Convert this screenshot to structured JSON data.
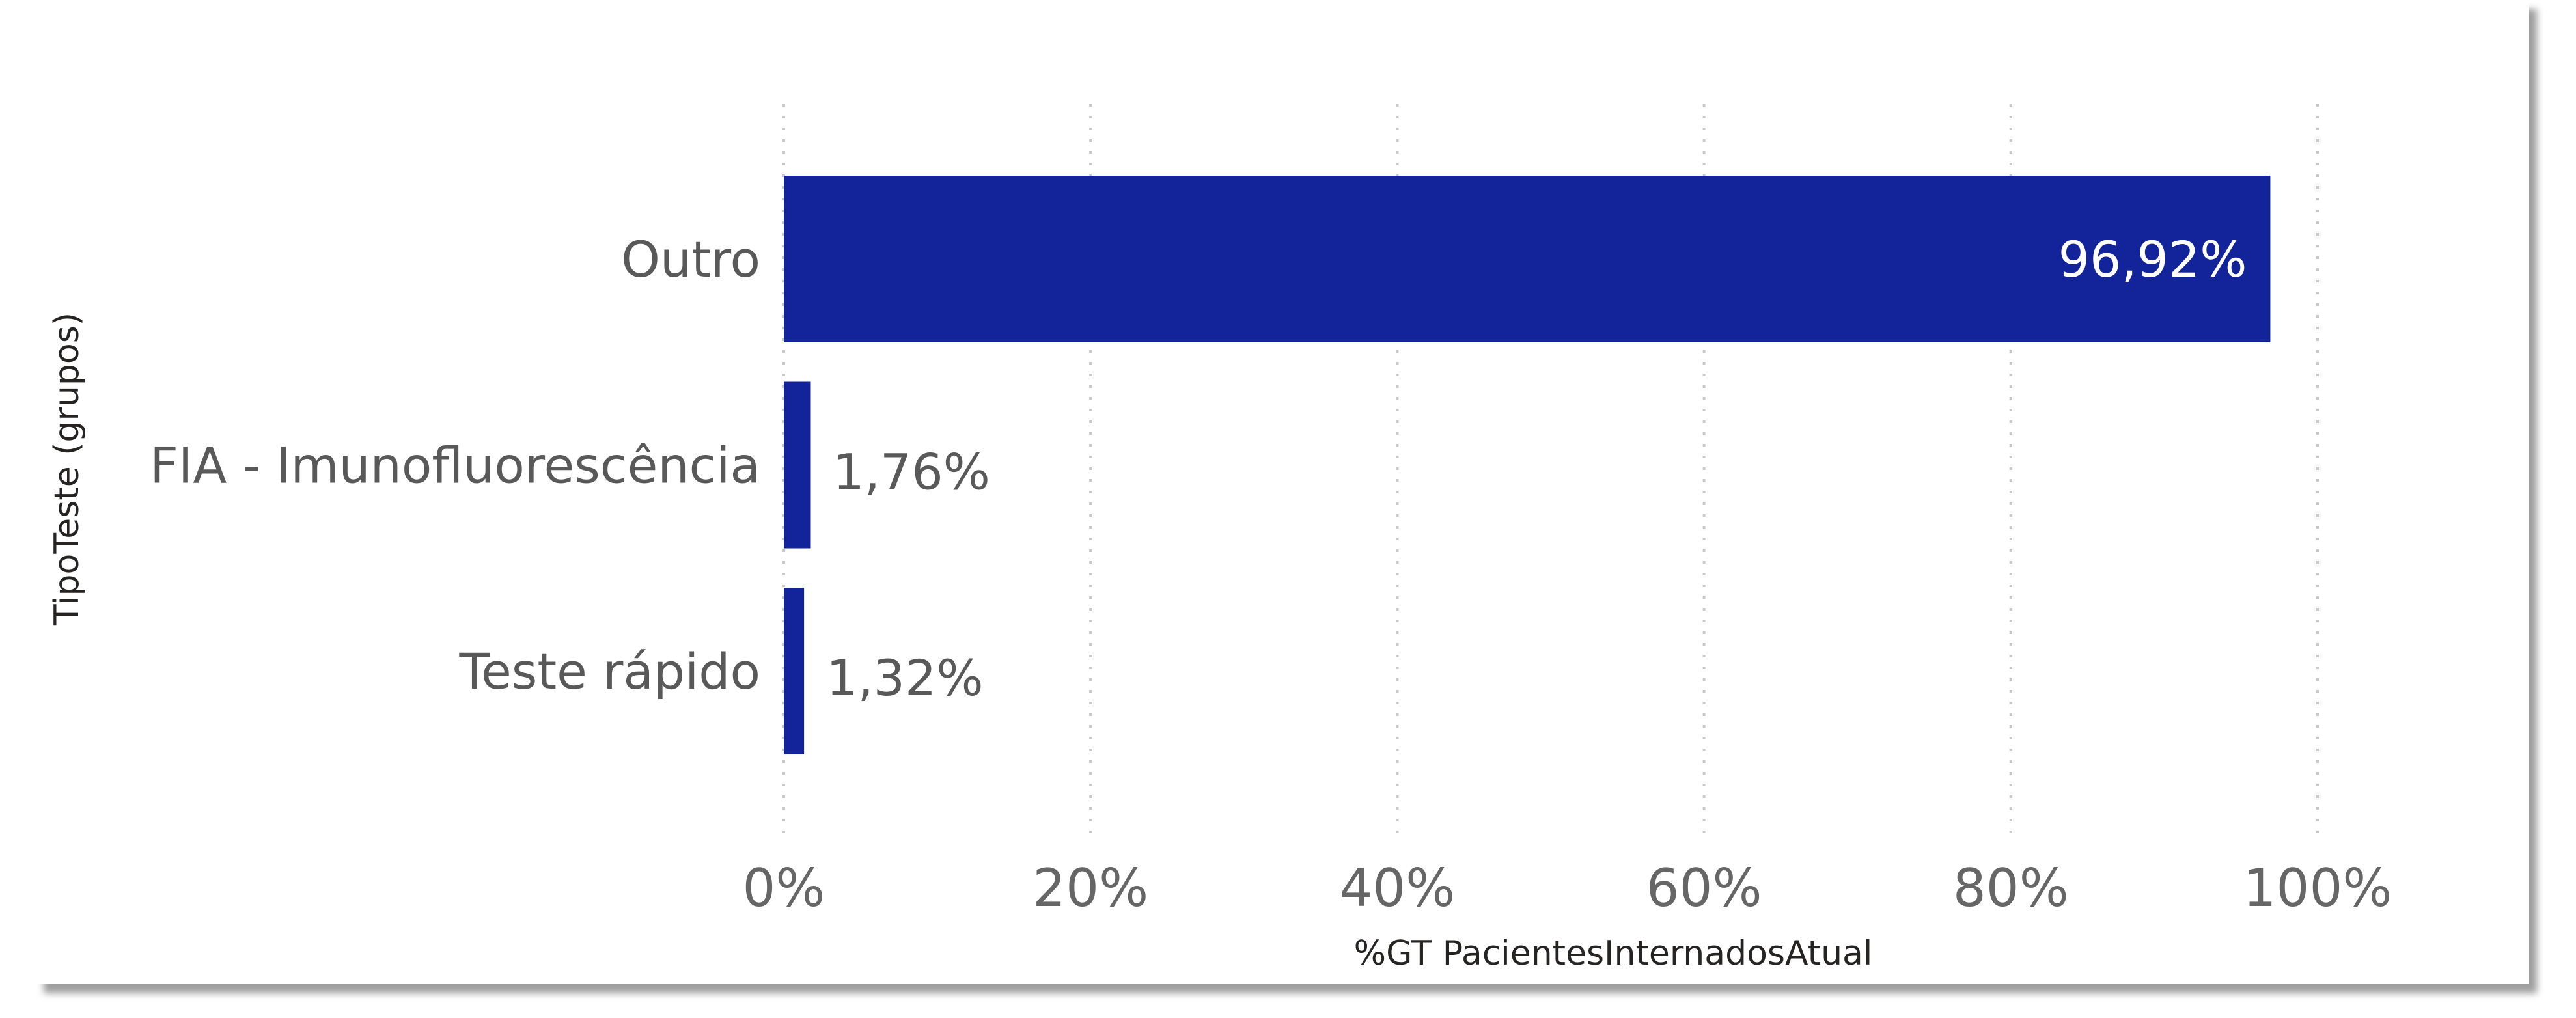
{
  "chart_data": {
    "type": "bar",
    "orientation": "horizontal",
    "categories": [
      "Outro",
      "FIA - Imunofluorescência",
      "Teste rápido"
    ],
    "values": [
      96.92,
      1.76,
      1.32
    ],
    "data_labels": [
      "96,92%",
      "1,76%",
      "1,32%"
    ],
    "x_ticks": [
      "0%",
      "20%",
      "40%",
      "60%",
      "80%",
      "100%"
    ],
    "xlim": [
      0,
      100
    ],
    "xlabel": "%GT PacientesInternadosAtual",
    "ylabel": "TipoTeste (grupos)",
    "bar_color": "#13249B",
    "grid": "vertical dashed",
    "legend": "none"
  }
}
